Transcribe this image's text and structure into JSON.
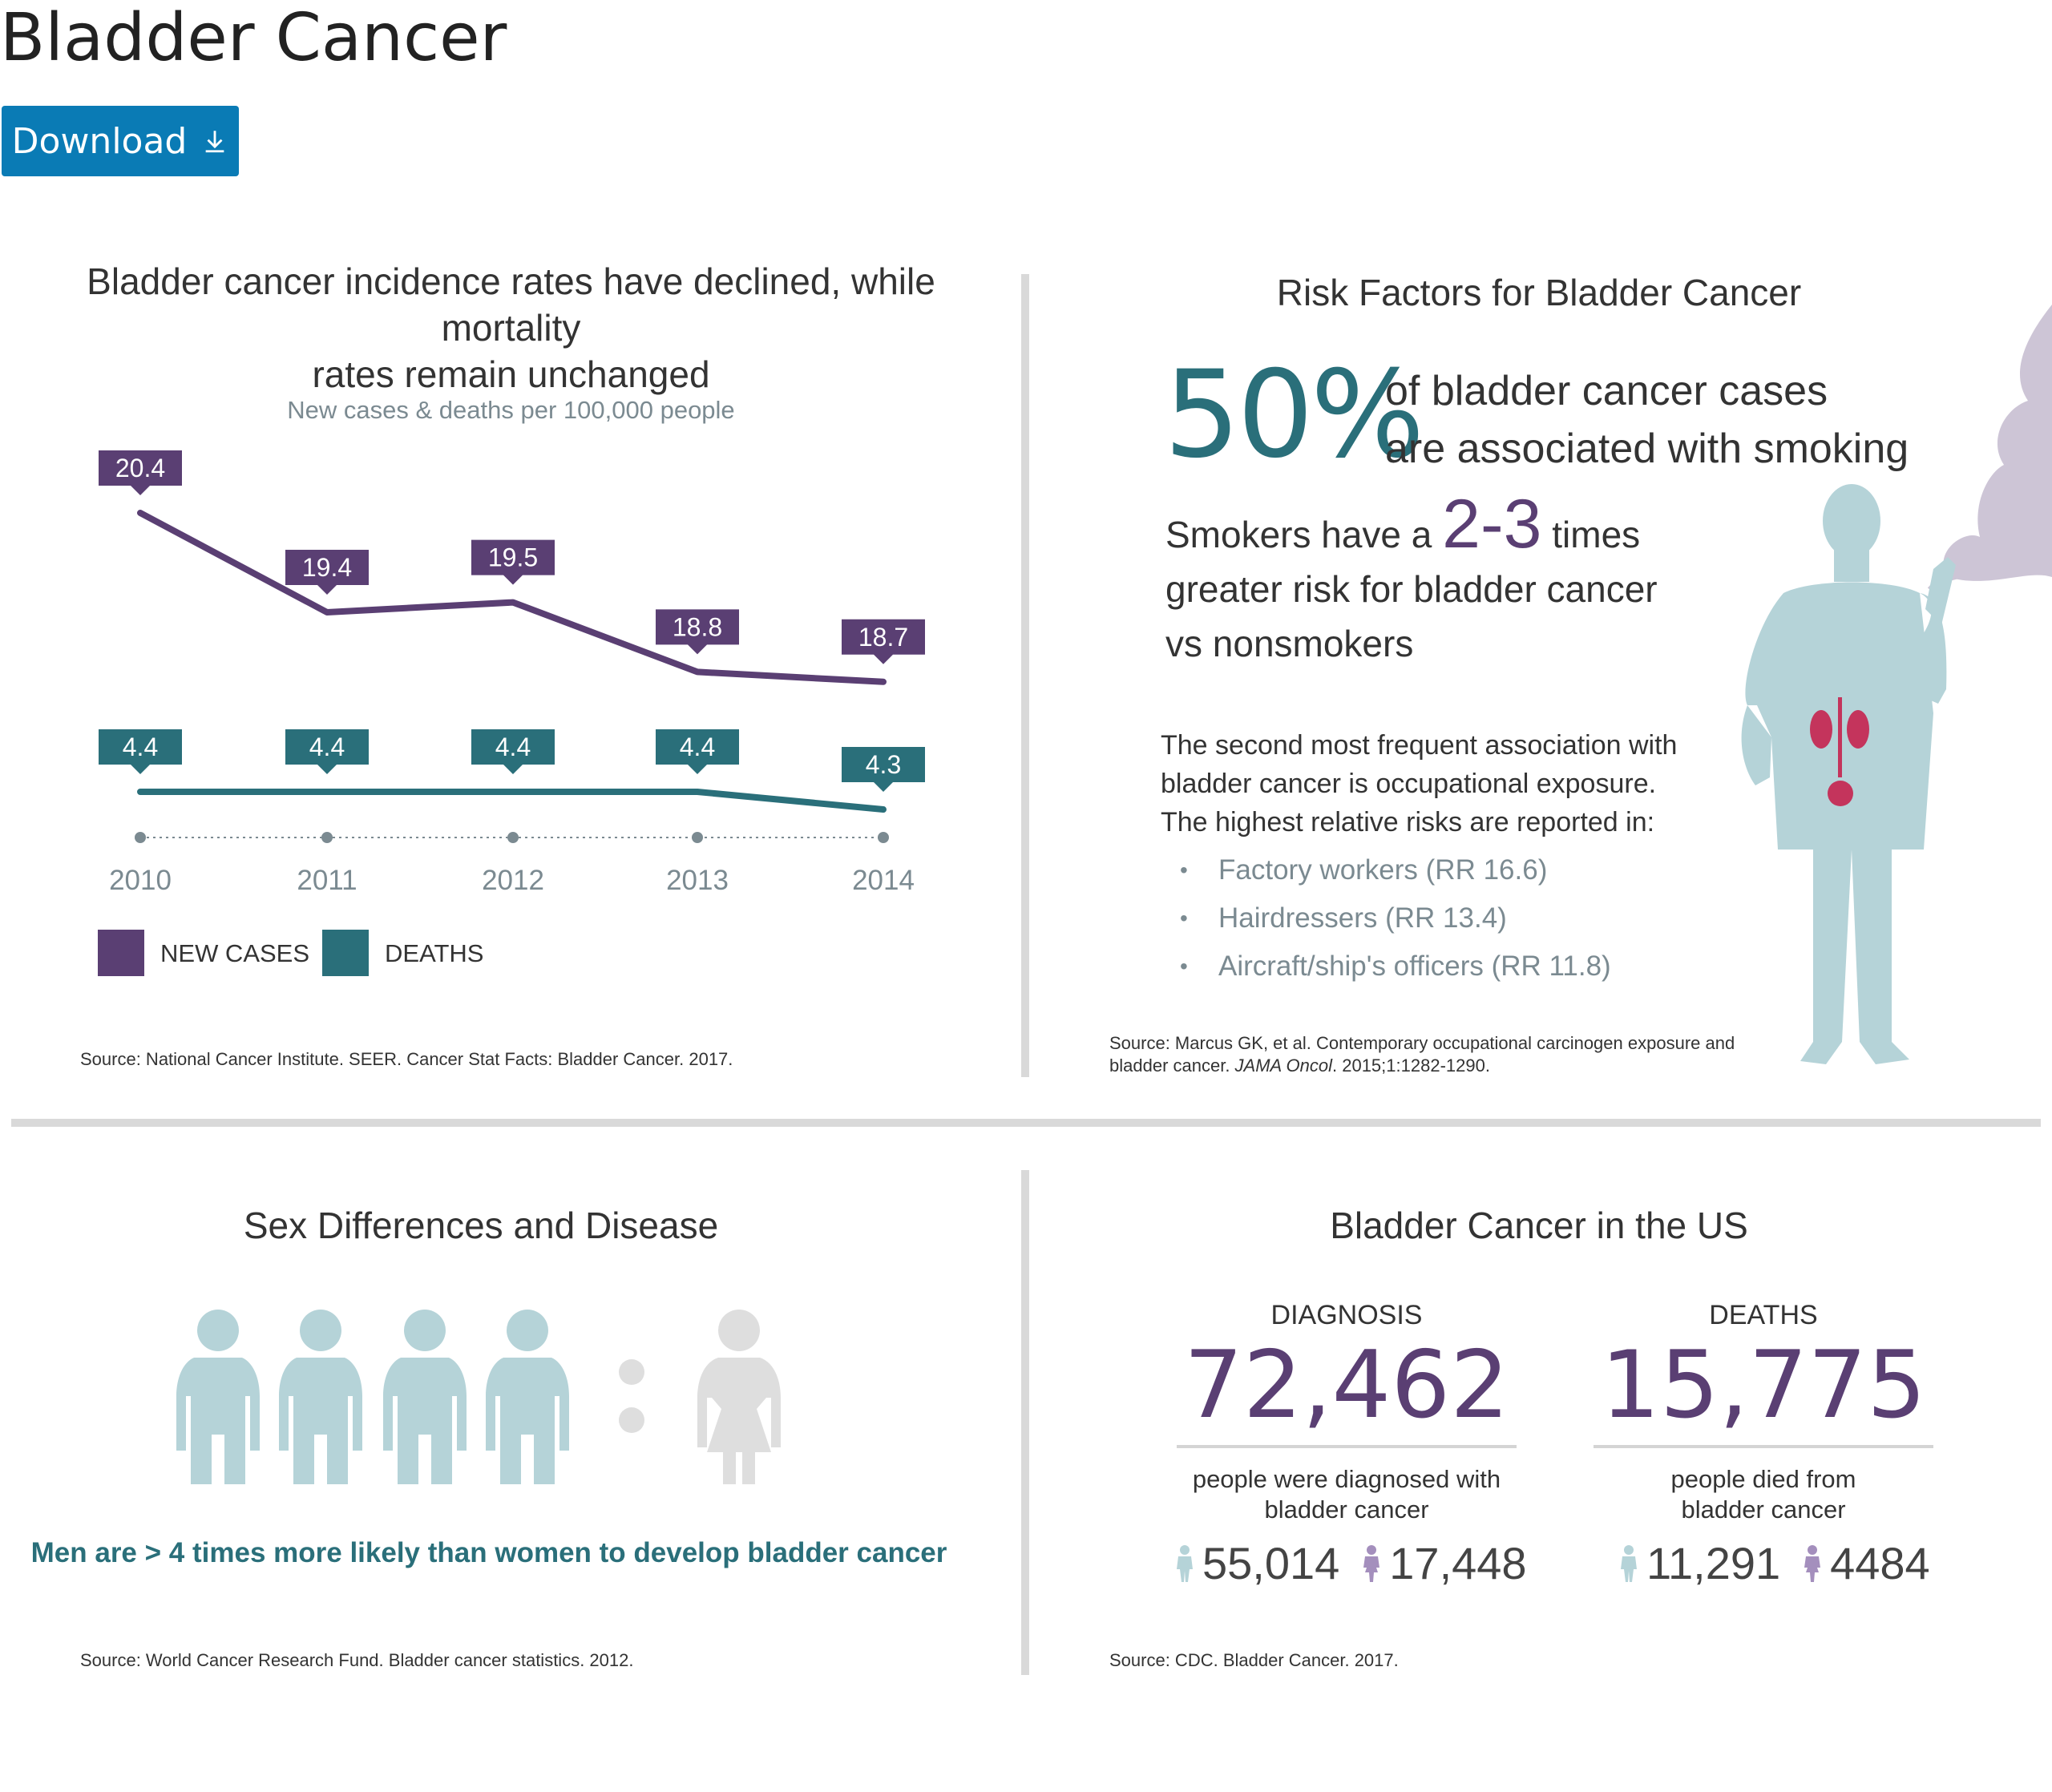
{
  "page": {
    "title": "Bladder Cancer",
    "download_label": "Download"
  },
  "incidence": {
    "title_line1": "Bladder cancer incidence rates have declined, while mortality",
    "title_line2": "rates remain unchanged",
    "subtitle": "New cases & deaths per 100,000 people",
    "source": "Source: National Cancer Institute. SEER. Cancer Stat Facts: Bladder Cancer. 2017."
  },
  "chart_data": {
    "type": "line",
    "title": "Bladder cancer incidence rates have declined, while mortality rates remain unchanged",
    "subtitle": "New cases & deaths per 100,000 people",
    "x": [
      "2010",
      "2011",
      "2012",
      "2013",
      "2014"
    ],
    "series": [
      {
        "name": "NEW CASES",
        "color": "#5a3f73",
        "values": [
          20.4,
          19.4,
          19.5,
          18.8,
          18.7
        ],
        "labels": [
          "20.4",
          "19.4",
          "19.5",
          "18.8",
          "18.7"
        ]
      },
      {
        "name": "DEATHS",
        "color": "#2a6f7a",
        "values": [
          4.4,
          4.4,
          4.4,
          4.4,
          4.3
        ],
        "labels": [
          "4.4",
          "4.4",
          "4.4",
          "4.4",
          "4.3"
        ]
      }
    ],
    "legend": "bottom-left",
    "grid": false
  },
  "risk": {
    "title": "Risk Factors for Bladder Cancer",
    "big_percent": "50%",
    "percent_line1": "of bladder cancer cases",
    "percent_line2": "are associated with smoking",
    "smokers_pre": "Smokers have a",
    "smokers_big": "2-3",
    "smokers_post": "times",
    "smokers_line2": "greater risk for bladder cancer",
    "smokers_line3": "vs nonsmokers",
    "occ_line1": "The second most frequent association with",
    "occ_line2": "bladder cancer is occupational exposure.",
    "occ_line3": "The highest relative risks are reported in:",
    "items": [
      "Factory workers (RR 16.6)",
      "Hairdressers  (RR 13.4)",
      "Aircraft/ship's officers (RR 11.8)"
    ],
    "source_line1": "Source: Marcus GK, et al. Contemporary occupational carcinogen exposure and",
    "source_line2_pre": "bladder cancer. ",
    "source_line2_journal": "JAMA Oncol",
    "source_line2_post": ". 2015;1:1282-1290."
  },
  "sex": {
    "title": "Sex Differences and Disease",
    "caption": "Men are > 4 times more likely than women to develop bladder cancer",
    "source": "Source: World Cancer Research Fund. Bladder cancer statistics. 2012.",
    "male_color": "#b5d3d8",
    "female_color": "#dedede"
  },
  "us": {
    "title": "Bladder Cancer in the US",
    "diagnosis": {
      "label": "DIAGNOSIS",
      "number": "72,462",
      "desc_line1": "people were diagnosed with",
      "desc_line2": "bladder cancer",
      "male": "55,014",
      "female": "17,448"
    },
    "deaths": {
      "label": "DEATHS",
      "number": "15,775",
      "desc_line1": "people died from",
      "desc_line2": "bladder cancer",
      "male": "11,291",
      "female": "4484"
    },
    "source": "Source: CDC. Bladder Cancer. 2017."
  },
  "colors": {
    "purple": "#5a3f73",
    "teal": "#2a6f7a",
    "download_blue": "#0a7bb5",
    "silhouette": "#b5d3d8",
    "smoke": "#cdc5d6",
    "organ": "#c4345c"
  }
}
